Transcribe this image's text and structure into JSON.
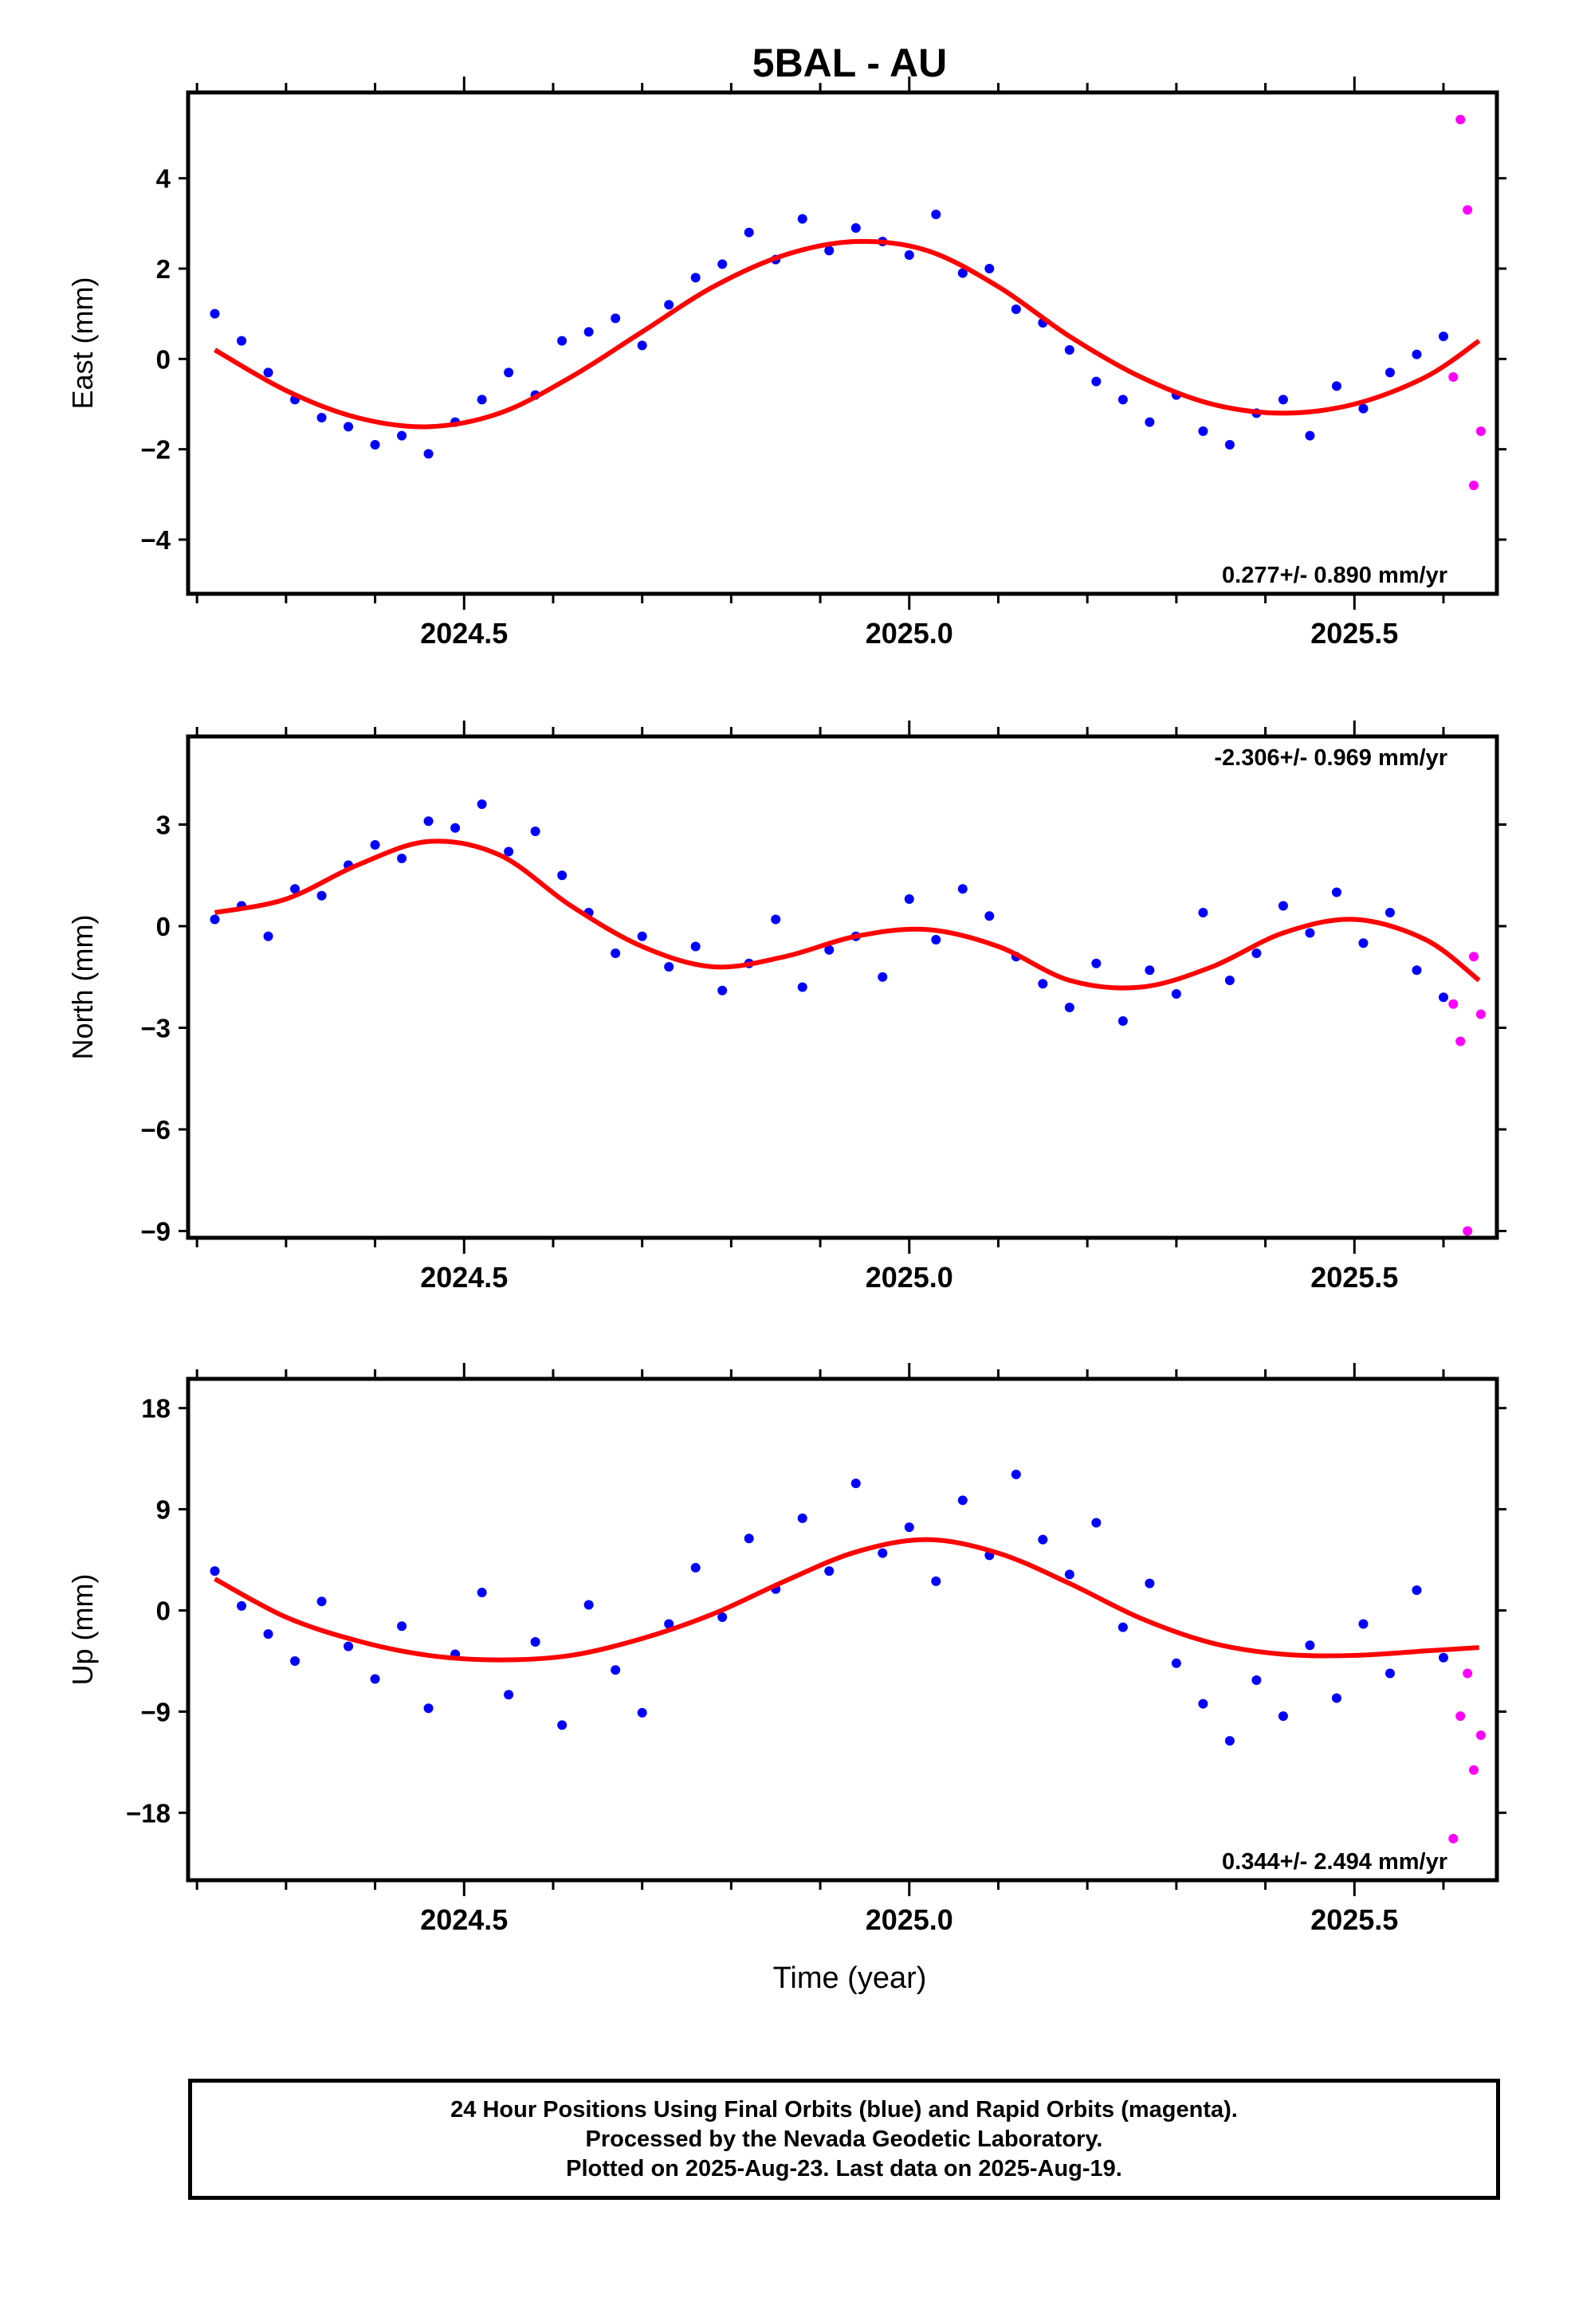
{
  "title": "5BAL - AU",
  "xlabel": "Time (year)",
  "colors": {
    "final": "#0000ff",
    "rapid": "#ff00ff",
    "fit": "#ff0000"
  },
  "footer": {
    "line1": "24 Hour Positions Using Final Orbits (blue) and Rapid Orbits (magenta).",
    "line2": "Processed by the Nevada Geodetic Laboratory.",
    "line3": "Plotted on 2025-Aug-23. Last data on 2025-Aug-19."
  },
  "chart_data": [
    {
      "type": "scatter",
      "component": "east",
      "ylabel": "East (mm)",
      "rate_text": "0.277+/- 0.890 mm/yr",
      "xlim": [
        2024.19,
        2025.66
      ],
      "ylim": [
        -5.2,
        5.9
      ],
      "yticks": [
        -4,
        -2,
        0,
        2,
        4
      ],
      "xticks": [
        2024.5,
        2025.0,
        2025.5
      ],
      "xtick_labels": [
        "2024.5",
        "2025.0",
        "2025.5"
      ],
      "series": [
        {
          "name": "Final Orbits (blue)",
          "x": [
            2024.22,
            2024.25,
            2024.28,
            2024.31,
            2024.34,
            2024.37,
            2024.4,
            2024.43,
            2024.46,
            2024.49,
            2024.52,
            2024.55,
            2024.58,
            2024.61,
            2024.64,
            2024.67,
            2024.7,
            2024.73,
            2024.76,
            2024.79,
            2024.82,
            2024.85,
            2024.88,
            2024.91,
            2024.94,
            2024.97,
            2025.0,
            2025.03,
            2025.06,
            2025.09,
            2025.12,
            2025.15,
            2025.18,
            2025.21,
            2025.24,
            2025.27,
            2025.3,
            2025.33,
            2025.36,
            2025.39,
            2025.42,
            2025.45,
            2025.48,
            2025.51,
            2025.54,
            2025.57,
            2025.6
          ],
          "y": [
            1.0,
            0.4,
            -0.3,
            -0.9,
            -1.3,
            -1.5,
            -1.9,
            -1.7,
            -2.1,
            -1.4,
            -0.9,
            -0.3,
            -0.8,
            0.4,
            0.6,
            0.9,
            0.3,
            1.2,
            1.8,
            2.1,
            2.8,
            2.2,
            3.1,
            2.4,
            2.9,
            2.6,
            2.3,
            3.2,
            1.9,
            2.0,
            1.1,
            0.8,
            0.2,
            -0.5,
            -0.9,
            -1.4,
            -0.8,
            -1.6,
            -1.9,
            -1.2,
            -0.9,
            -1.7,
            -0.6,
            -1.1,
            -0.3,
            0.1,
            0.5
          ]
        },
        {
          "name": "Rapid Orbits (magenta)",
          "x": [
            2025.611,
            2025.619,
            2025.627,
            2025.634,
            2025.642
          ],
          "y": [
            -0.4,
            5.3,
            3.3,
            -2.8,
            -1.6
          ]
        }
      ],
      "fit": {
        "name": "fit",
        "x": [
          2024.22,
          2024.3,
          2024.38,
          2024.46,
          2024.54,
          2024.62,
          2024.7,
          2024.78,
          2024.86,
          2024.94,
          2025.02,
          2025.1,
          2025.18,
          2025.26,
          2025.34,
          2025.42,
          2025.5,
          2025.58,
          2025.64
        ],
        "y": [
          0.2,
          -0.7,
          -1.3,
          -1.5,
          -1.2,
          -0.4,
          0.6,
          1.6,
          2.3,
          2.6,
          2.4,
          1.6,
          0.5,
          -0.4,
          -1.0,
          -1.2,
          -1.0,
          -0.4,
          0.4
        ]
      }
    },
    {
      "type": "scatter",
      "component": "north",
      "ylabel": "North (mm)",
      "rate_text": "-2.306+/- 0.969 mm/yr",
      "xlim": [
        2024.19,
        2025.66
      ],
      "ylim": [
        -9.2,
        5.6
      ],
      "yticks": [
        -9,
        -6,
        -3,
        0,
        3
      ],
      "xticks": [
        2024.5,
        2025.0,
        2025.5
      ],
      "xtick_labels": [
        "2024.5",
        "2025.0",
        "2025.5"
      ],
      "series": [
        {
          "name": "Final Orbits (blue)",
          "x": [
            2024.22,
            2024.25,
            2024.28,
            2024.31,
            2024.34,
            2024.37,
            2024.4,
            2024.43,
            2024.46,
            2024.49,
            2024.52,
            2024.55,
            2024.58,
            2024.61,
            2024.64,
            2024.67,
            2024.7,
            2024.73,
            2024.76,
            2024.79,
            2024.82,
            2024.85,
            2024.88,
            2024.91,
            2024.94,
            2024.97,
            2025.0,
            2025.03,
            2025.06,
            2025.09,
            2025.12,
            2025.15,
            2025.18,
            2025.21,
            2025.24,
            2025.27,
            2025.3,
            2025.33,
            2025.36,
            2025.39,
            2025.42,
            2025.45,
            2025.48,
            2025.51,
            2025.54,
            2025.57,
            2025.6
          ],
          "y": [
            0.2,
            0.6,
            -0.3,
            1.1,
            0.9,
            1.8,
            2.4,
            2.0,
            3.1,
            2.9,
            3.6,
            2.2,
            2.8,
            1.5,
            0.4,
            -0.8,
            -0.3,
            -1.2,
            -0.6,
            -1.9,
            -1.1,
            0.2,
            -1.8,
            -0.7,
            -0.3,
            -1.5,
            0.8,
            -0.4,
            1.1,
            0.3,
            -0.9,
            -1.7,
            -2.4,
            -1.1,
            -2.8,
            -1.3,
            -2.0,
            0.4,
            -1.6,
            -0.8,
            0.6,
            -0.2,
            1.0,
            -0.5,
            0.4,
            -1.3,
            -2.1
          ]
        },
        {
          "name": "Rapid Orbits (magenta)",
          "x": [
            2025.611,
            2025.619,
            2025.627,
            2025.634,
            2025.642
          ],
          "y": [
            -2.3,
            -3.4,
            -9.0,
            -0.9,
            -2.6
          ]
        }
      ],
      "fit": {
        "name": "fit",
        "x": [
          2024.22,
          2024.3,
          2024.38,
          2024.46,
          2024.54,
          2024.62,
          2024.7,
          2024.78,
          2024.86,
          2024.94,
          2025.02,
          2025.1,
          2025.18,
          2025.26,
          2025.34,
          2025.42,
          2025.5,
          2025.58,
          2025.64
        ],
        "y": [
          0.4,
          0.8,
          1.8,
          2.5,
          2.1,
          0.6,
          -0.6,
          -1.2,
          -0.9,
          -0.3,
          -0.1,
          -0.6,
          -1.6,
          -1.8,
          -1.2,
          -0.2,
          0.2,
          -0.4,
          -1.6
        ]
      }
    },
    {
      "type": "scatter",
      "component": "up",
      "ylabel": "Up (mm)",
      "rate_text": "0.344+/- 2.494 mm/yr",
      "xlim": [
        2024.19,
        2025.66
      ],
      "ylim": [
        -24.0,
        20.6
      ],
      "yticks": [
        -18,
        -9,
        0,
        9,
        18
      ],
      "xticks": [
        2024.5,
        2025.0,
        2025.5
      ],
      "xtick_labels": [
        "2024.5",
        "2025.0",
        "2025.5"
      ],
      "series": [
        {
          "name": "Final Orbits (blue)",
          "x": [
            2024.22,
            2024.25,
            2024.28,
            2024.31,
            2024.34,
            2024.37,
            2024.4,
            2024.43,
            2024.46,
            2024.49,
            2024.52,
            2024.55,
            2024.58,
            2024.61,
            2024.64,
            2024.67,
            2024.7,
            2024.73,
            2024.76,
            2024.79,
            2024.82,
            2024.85,
            2024.88,
            2024.91,
            2024.94,
            2024.97,
            2025.0,
            2025.03,
            2025.06,
            2025.09,
            2025.12,
            2025.15,
            2025.18,
            2025.21,
            2025.24,
            2025.27,
            2025.3,
            2025.33,
            2025.36,
            2025.39,
            2025.42,
            2025.45,
            2025.48,
            2025.51,
            2025.54,
            2025.57,
            2025.6
          ],
          "y": [
            3.5,
            0.4,
            -2.1,
            -4.5,
            0.8,
            -3.2,
            -6.1,
            -1.4,
            -8.7,
            -3.9,
            1.6,
            -7.5,
            -2.8,
            -10.2,
            0.5,
            -5.3,
            -9.1,
            -1.2,
            3.8,
            -0.6,
            6.4,
            1.9,
            8.2,
            3.5,
            11.3,
            5.1,
            7.4,
            2.6,
            9.8,
            4.9,
            12.1,
            6.3,
            3.2,
            7.8,
            -1.5,
            2.4,
            -4.7,
            -8.3,
            -11.6,
            -6.2,
            -9.4,
            -3.1,
            -7.8,
            -1.2,
            -5.6,
            1.8,
            -4.2
          ]
        },
        {
          "name": "Rapid Orbits (magenta)",
          "x": [
            2025.611,
            2025.619,
            2025.627,
            2025.634,
            2025.642
          ],
          "y": [
            -20.3,
            -9.4,
            -5.6,
            -14.2,
            -11.1
          ]
        }
      ],
      "fit": {
        "name": "fit",
        "x": [
          2024.22,
          2024.3,
          2024.38,
          2024.46,
          2024.54,
          2024.62,
          2024.7,
          2024.78,
          2024.86,
          2024.94,
          2025.02,
          2025.1,
          2025.18,
          2025.26,
          2025.34,
          2025.42,
          2025.5,
          2025.58,
          2025.64
        ],
        "y": [
          2.8,
          -0.6,
          -2.7,
          -4.0,
          -4.4,
          -4.0,
          -2.5,
          -0.3,
          2.6,
          5.2,
          6.3,
          5.1,
          2.4,
          -0.7,
          -2.9,
          -3.9,
          -4.0,
          -3.6,
          -3.3
        ]
      }
    }
  ]
}
